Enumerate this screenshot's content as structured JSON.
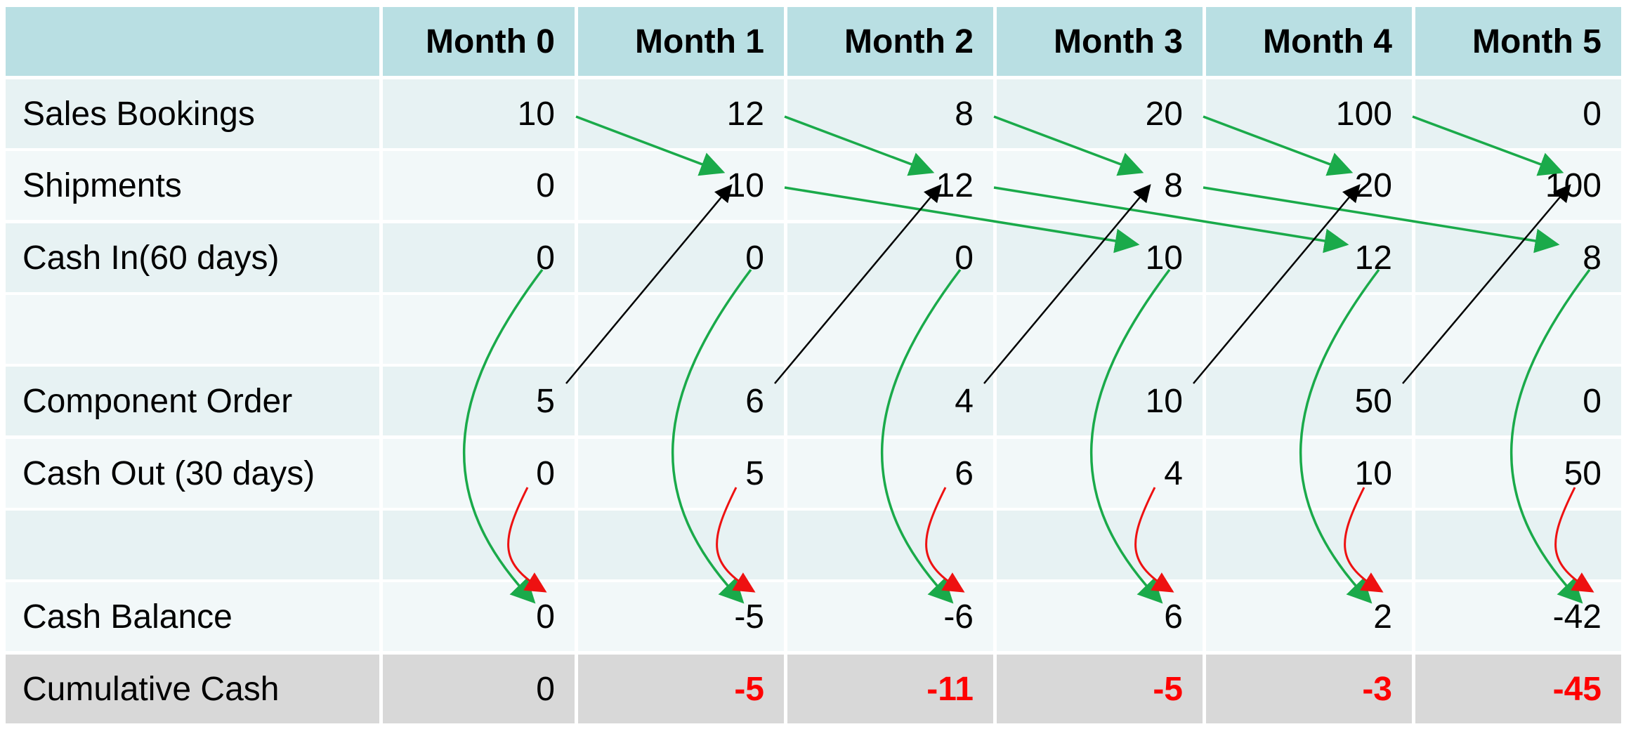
{
  "headers": [
    "",
    "Month 0",
    "Month 1",
    "Month 2",
    "Month 3",
    "Month 4",
    "Month 5"
  ],
  "rows": [
    {
      "label": "Sales Bookings",
      "values": [
        "10",
        "12",
        "8",
        "20",
        "100",
        "0"
      ]
    },
    {
      "label": "Shipments",
      "values": [
        "0",
        "10",
        "12",
        "8",
        "20",
        "100"
      ]
    },
    {
      "label": "Cash In(60 days)",
      "values": [
        "0",
        "0",
        "0",
        "10",
        "12",
        "8"
      ]
    },
    {
      "label": "",
      "values": [
        "",
        "",
        "",
        "",
        "",
        ""
      ]
    },
    {
      "label": "Component Order",
      "values": [
        "5",
        "6",
        "4",
        "10",
        "50",
        "0"
      ]
    },
    {
      "label": "Cash Out (30 days)",
      "values": [
        "0",
        "5",
        "6",
        "4",
        "10",
        "50"
      ]
    },
    {
      "label": "",
      "values": [
        "",
        "",
        "",
        "",
        "",
        ""
      ]
    },
    {
      "label": "Cash Balance",
      "values": [
        "0",
        "-5",
        "-6",
        "6",
        "2",
        "-42"
      ]
    },
    {
      "label": "Cumulative Cash",
      "values": [
        "0",
        "-5",
        "-11",
        "-5",
        "-3",
        "-45"
      ]
    }
  ],
  "colors": {
    "header_bg": "#b9dfe3",
    "row_a_bg": "#e7f2f3",
    "row_b_bg": "#f2f8f9",
    "total_row_bg": "#d8d8d8",
    "negative_total": "#ff0000",
    "arrow_green": "#1aaa4a",
    "arrow_black": "#000000",
    "arrow_red": "#ee1111"
  }
}
